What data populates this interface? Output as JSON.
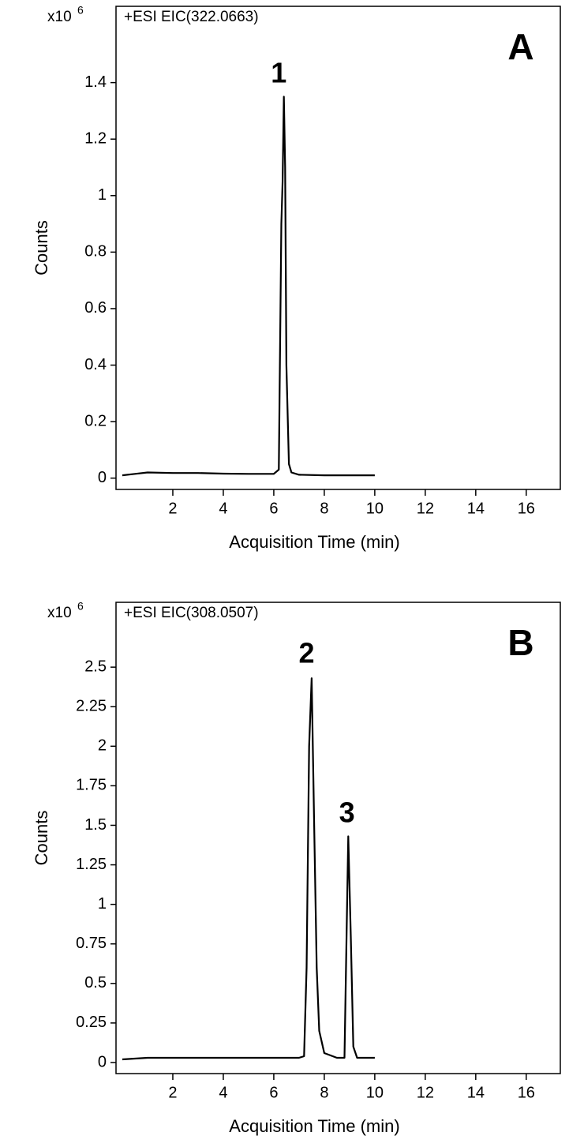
{
  "chart_data": [
    {
      "type": "line",
      "panel_label": "A",
      "title": "+ESI  EIC(322.0663)",
      "scale_label": "x10",
      "scale_exponent": "6",
      "x_label": "Acquisition Time (min)",
      "y_label": "Counts",
      "annotations": [
        "1"
      ],
      "color": "#000000",
      "x": [
        0,
        0.5,
        1,
        2,
        3,
        4,
        5,
        6,
        6.2,
        6.3,
        6.35,
        6.4,
        6.45,
        6.5,
        6.6,
        6.7,
        7,
        8,
        9,
        10
      ],
      "values": [
        0.01,
        0.015,
        0.02,
        0.018,
        0.018,
        0.016,
        0.015,
        0.015,
        0.03,
        0.9,
        1.05,
        1.35,
        1.1,
        0.4,
        0.05,
        0.02,
        0.012,
        0.01,
        0.01,
        0.01
      ],
      "xlim": [
        -0.25,
        17.35
      ],
      "xticks": [
        2,
        4,
        6,
        8,
        10,
        12,
        14,
        16
      ],
      "ylim": [
        -0.04,
        1.67
      ],
      "yticks": [
        0,
        0.2,
        0.4,
        0.6,
        0.8,
        1,
        1.2,
        1.4
      ]
    },
    {
      "type": "line",
      "panel_label": "B",
      "title": "+ESI  EIC(308.0507)",
      "scale_label": "x10",
      "scale_exponent": "6",
      "x_label": "Acquisition Time (min)",
      "y_label": "Counts",
      "annotations": [
        "2",
        "3"
      ],
      "color": "#000000",
      "x": [
        0,
        0.5,
        1,
        3,
        5,
        7,
        7.2,
        7.3,
        7.4,
        7.5,
        7.6,
        7.7,
        7.8,
        8,
        8.5,
        8.8,
        8.85,
        8.95,
        9.05,
        9.15,
        9.3,
        10
      ],
      "values": [
        0.02,
        0.025,
        0.03,
        0.03,
        0.03,
        0.03,
        0.04,
        0.6,
        2.0,
        2.43,
        1.5,
        0.6,
        0.2,
        0.06,
        0.03,
        0.03,
        0.5,
        1.43,
        0.8,
        0.1,
        0.03,
        0.03
      ],
      "xlim": [
        -0.25,
        17.35
      ],
      "xticks": [
        2,
        4,
        6,
        8,
        10,
        12,
        14,
        16
      ],
      "ylim": [
        -0.07,
        2.91
      ],
      "yticks": [
        0,
        0.25,
        0.5,
        0.75,
        1,
        1.25,
        1.5,
        1.75,
        2,
        2.25,
        2.5
      ]
    }
  ]
}
